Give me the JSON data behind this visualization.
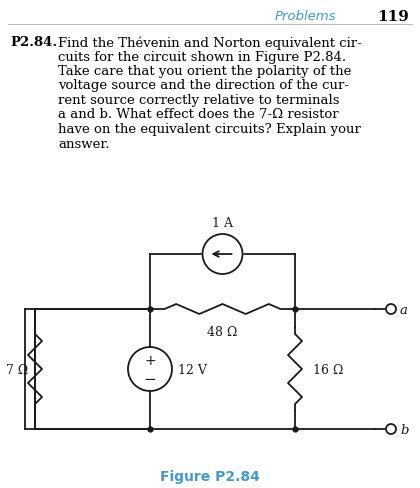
{
  "title_right": "Problems",
  "page_num": "119",
  "problem_label": "P2.84.",
  "problem_text_lines": [
    "Find the Thévenin and Norton equivalent cir-",
    "cuits for the circuit shown in Figure P2.84.",
    "Take care that you orient the polarity of the",
    "voltage source and the direction of the cur-",
    "rent source correctly relative to terminals",
    "a and b. What effect does the 7-Ω resistor",
    "have on the equivalent circuits? Explain your",
    "answer."
  ],
  "figure_label": "Figure P2.84",
  "current_source_label": "1 A",
  "resistor_48_label": "48 Ω",
  "resistor_7_label": "7 Ω",
  "resistor_16_label": "16 Ω",
  "voltage_source_label": "12 V",
  "terminal_a": "a",
  "terminal_b": "b",
  "bg_color": "#ffffff",
  "text_color": "#000000",
  "circuit_color": "#1a1a1a",
  "figure_label_color": "#4499cc",
  "header_color": "#4499cc",
  "line_width": 1.3,
  "dot_size": 3.5
}
